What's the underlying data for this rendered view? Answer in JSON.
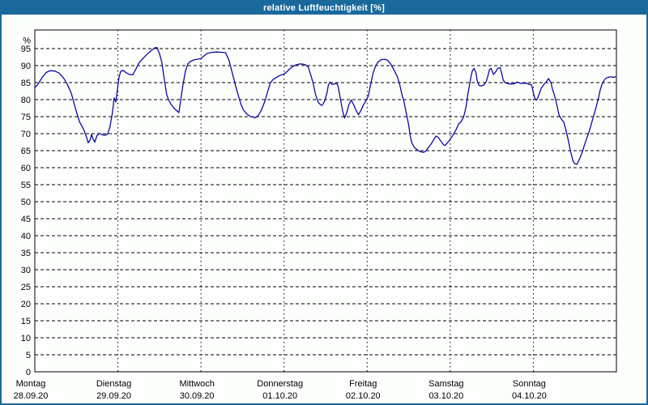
{
  "window": {
    "title": "relative Luftfeuchtigkeit [%]"
  },
  "colors": {
    "titlebar": "#19699C",
    "window_border": "#19699C",
    "plot_border": "#000000",
    "grid": "#000000",
    "line": "#0A0AA0",
    "background": "#FCFEFC"
  },
  "chart_data": {
    "type": "line",
    "title": "relative Luftfeuchtigkeit [%]",
    "ylabel": "%",
    "y_unit_label": "%",
    "ylim": [
      0,
      100
    ],
    "yticks": [
      0,
      5,
      10,
      15,
      20,
      25,
      30,
      35,
      40,
      45,
      50,
      55,
      60,
      65,
      70,
      75,
      80,
      85,
      90,
      95
    ],
    "grid": "dashed",
    "legend_position": "none",
    "x_hours_span": 168,
    "x_days": [
      {
        "name": "Montag",
        "date": "28.09.20"
      },
      {
        "name": "Dienstag",
        "date": "29.09.20"
      },
      {
        "name": "Mittwoch",
        "date": "30.09.20"
      },
      {
        "name": "Donnerstag",
        "date": "01.10.20"
      },
      {
        "name": "Freitag",
        "date": "02.10.20"
      },
      {
        "name": "Samstag",
        "date": "03.10.20"
      },
      {
        "name": "Sonntag",
        "date": "04.10.20"
      }
    ],
    "series": [
      {
        "name": "relative Luftfeuchtigkeit",
        "unit": "%",
        "color": "#0A0AA0",
        "points": [
          [
            0,
            83.5
          ],
          [
            0.9,
            84.5
          ],
          [
            2.1,
            86.5
          ],
          [
            3.3,
            88
          ],
          [
            4.4,
            88.5
          ],
          [
            5.8,
            88.4
          ],
          [
            7,
            87.8
          ],
          [
            8.2,
            86.5
          ],
          [
            9.3,
            84.7
          ],
          [
            10.5,
            82
          ],
          [
            11.7,
            77.5
          ],
          [
            12.9,
            73.5
          ],
          [
            14,
            71.5
          ],
          [
            15,
            68.8
          ],
          [
            15.4,
            67.3
          ],
          [
            15.9,
            68
          ],
          [
            16.4,
            69.8
          ],
          [
            16.8,
            68.5
          ],
          [
            17.3,
            67.5
          ],
          [
            18,
            69.5
          ],
          [
            18.7,
            70.1
          ],
          [
            19.4,
            69.7
          ],
          [
            20.1,
            69.5
          ],
          [
            21,
            69.8
          ],
          [
            21.7,
            72
          ],
          [
            22.4,
            76
          ],
          [
            22.9,
            80.5
          ],
          [
            23.4,
            79.3
          ],
          [
            23.8,
            82.5
          ],
          [
            24.3,
            86.5
          ],
          [
            24.8,
            88.3
          ],
          [
            25.5,
            88.6
          ],
          [
            26.4,
            87.9
          ],
          [
            27.3,
            87.4
          ],
          [
            28.3,
            87.3
          ],
          [
            29.2,
            89
          ],
          [
            30.1,
            90.8
          ],
          [
            31.3,
            92.2
          ],
          [
            32.5,
            93.4
          ],
          [
            33.7,
            94.5
          ],
          [
            34.6,
            95.2
          ],
          [
            35.3,
            95.3
          ],
          [
            36,
            93.5
          ],
          [
            36.7,
            91
          ],
          [
            37.4,
            86
          ],
          [
            38.1,
            81.5
          ],
          [
            38.6,
            80
          ],
          [
            39.3,
            78.7
          ],
          [
            40.2,
            77.5
          ],
          [
            40.9,
            76.8
          ],
          [
            41.6,
            76.2
          ],
          [
            42.1,
            79.5
          ],
          [
            42.8,
            84.4
          ],
          [
            43.5,
            88.3
          ],
          [
            44.2,
            90.5
          ],
          [
            44.9,
            91.2
          ],
          [
            46,
            91.7
          ],
          [
            47,
            91.9
          ],
          [
            47.9,
            92
          ],
          [
            48.8,
            92.8
          ],
          [
            49.8,
            93.6
          ],
          [
            51.2,
            93.9
          ],
          [
            52.6,
            94
          ],
          [
            54,
            93.9
          ],
          [
            55.1,
            93.8
          ],
          [
            56.1,
            91.5
          ],
          [
            57,
            88
          ],
          [
            58,
            84
          ],
          [
            58.9,
            80.8
          ],
          [
            59.6,
            78.5
          ],
          [
            60.3,
            76.9
          ],
          [
            61.2,
            75.8
          ],
          [
            62.2,
            75.1
          ],
          [
            63.1,
            74.8
          ],
          [
            63.8,
            74.7
          ],
          [
            64.5,
            75.3
          ],
          [
            65.2,
            76.5
          ],
          [
            65.9,
            78
          ],
          [
            66.6,
            80
          ],
          [
            67.3,
            82.5
          ],
          [
            68,
            84.8
          ],
          [
            68.7,
            85.8
          ],
          [
            69.6,
            86.4
          ],
          [
            70.6,
            87
          ],
          [
            71.3,
            87.3
          ],
          [
            72,
            87.5
          ],
          [
            72.9,
            88.3
          ],
          [
            73.8,
            89.2
          ],
          [
            74.8,
            89.9
          ],
          [
            75.7,
            90.3
          ],
          [
            76.6,
            90.5
          ],
          [
            77.6,
            90.4
          ],
          [
            78.3,
            90.2
          ],
          [
            79,
            89.6
          ],
          [
            79.7,
            87.3
          ],
          [
            80.4,
            84.8
          ],
          [
            81.1,
            81.5
          ],
          [
            81.8,
            79.3
          ],
          [
            82.5,
            78.5
          ],
          [
            83,
            78.3
          ],
          [
            83.7,
            79.5
          ],
          [
            84.4,
            82
          ],
          [
            84.8,
            84.3
          ],
          [
            85.3,
            85.2
          ],
          [
            85.8,
            84.5
          ],
          [
            86.5,
            84.6
          ],
          [
            87.2,
            84.8
          ],
          [
            87.6,
            84
          ],
          [
            88.3,
            80
          ],
          [
            89,
            76.2
          ],
          [
            89.5,
            74.6
          ],
          [
            90.2,
            76.5
          ],
          [
            90.7,
            78.4
          ],
          [
            91.4,
            79.9
          ],
          [
            92.1,
            78.5
          ],
          [
            92.8,
            76.8
          ],
          [
            93.5,
            75.6
          ],
          [
            94.2,
            76.8
          ],
          [
            94.9,
            78.4
          ],
          [
            95.6,
            79.6
          ],
          [
            96.3,
            81
          ],
          [
            97,
            84.5
          ],
          [
            97.7,
            87.8
          ],
          [
            98.4,
            89.8
          ],
          [
            99.1,
            91
          ],
          [
            100,
            91.7
          ],
          [
            100.9,
            91.9
          ],
          [
            101.9,
            91.6
          ],
          [
            102.8,
            90.5
          ],
          [
            103.7,
            88.8
          ],
          [
            104.7,
            86.8
          ],
          [
            105.4,
            84.4
          ],
          [
            106.1,
            81.2
          ],
          [
            106.6,
            79.6
          ],
          [
            107.3,
            76
          ],
          [
            108,
            72.5
          ],
          [
            108.4,
            69.5
          ],
          [
            108.9,
            67.3
          ],
          [
            109.6,
            66
          ],
          [
            110.5,
            65.2
          ],
          [
            111.4,
            64.7
          ],
          [
            112.2,
            64.5
          ],
          [
            112.9,
            64.8
          ],
          [
            113.6,
            65.8
          ],
          [
            114.5,
            67
          ],
          [
            115.2,
            68.2
          ],
          [
            115.9,
            69.3
          ],
          [
            116.6,
            68.8
          ],
          [
            117.3,
            67.8
          ],
          [
            118,
            66.8
          ],
          [
            118.5,
            66.5
          ],
          [
            119.2,
            67.3
          ],
          [
            119.9,
            68.2
          ],
          [
            120.8,
            69.6
          ],
          [
            121.7,
            71.2
          ],
          [
            122.4,
            72.8
          ],
          [
            123.2,
            73.6
          ],
          [
            123.9,
            75
          ],
          [
            124.6,
            78
          ],
          [
            125,
            81
          ],
          [
            125.5,
            84
          ],
          [
            126,
            86.8
          ],
          [
            126.4,
            88.5
          ],
          [
            126.9,
            89.2
          ],
          [
            127.4,
            88
          ],
          [
            127.8,
            85.5
          ],
          [
            128.3,
            84.2
          ],
          [
            129,
            84
          ],
          [
            129.7,
            84.3
          ],
          [
            130.4,
            85.3
          ],
          [
            130.9,
            87
          ],
          [
            131.3,
            88.8
          ],
          [
            131.8,
            89.2
          ],
          [
            132.5,
            87.4
          ],
          [
            133.2,
            88.3
          ],
          [
            133.7,
            89.2
          ],
          [
            134.4,
            89.4
          ],
          [
            134.8,
            88
          ],
          [
            135.3,
            85.8
          ],
          [
            135.8,
            85
          ],
          [
            136.7,
            84.7
          ],
          [
            137.6,
            84.6
          ],
          [
            138.6,
            84.7
          ],
          [
            139.3,
            85.2
          ],
          [
            140.2,
            84.8
          ],
          [
            141.1,
            84.8
          ],
          [
            142.1,
            84.8
          ],
          [
            142.8,
            84.5
          ],
          [
            143.5,
            84.3
          ],
          [
            143.9,
            82.5
          ],
          [
            144.4,
            80.5
          ],
          [
            144.9,
            79.8
          ],
          [
            145.3,
            80.6
          ],
          [
            145.8,
            82
          ],
          [
            146.3,
            83.4
          ],
          [
            147,
            84.4
          ],
          [
            147.7,
            85.2
          ],
          [
            148.4,
            86.2
          ],
          [
            149.1,
            85
          ],
          [
            149.5,
            83.2
          ],
          [
            150.2,
            81
          ],
          [
            150.9,
            78
          ],
          [
            151.4,
            75.5
          ],
          [
            151.9,
            74.6
          ],
          [
            152.3,
            74
          ],
          [
            152.8,
            73.4
          ],
          [
            153.3,
            71.5
          ],
          [
            154,
            68.5
          ],
          [
            154.7,
            65
          ],
          [
            155.4,
            62.2
          ],
          [
            155.9,
            61.2
          ],
          [
            156.6,
            61
          ],
          [
            157.3,
            62.5
          ],
          [
            158,
            64.2
          ],
          [
            158.7,
            66.5
          ],
          [
            159.4,
            68.5
          ],
          [
            160.1,
            70.5
          ],
          [
            160.8,
            73
          ],
          [
            161.5,
            75.5
          ],
          [
            162.2,
            78
          ],
          [
            162.9,
            80.8
          ],
          [
            163.3,
            82.8
          ],
          [
            163.8,
            84.4
          ],
          [
            164.3,
            85.5
          ],
          [
            165,
            86.3
          ],
          [
            165.7,
            86.6
          ],
          [
            166.4,
            86.7
          ],
          [
            167.1,
            86.6
          ],
          [
            167.8,
            86.7
          ]
        ]
      }
    ]
  }
}
